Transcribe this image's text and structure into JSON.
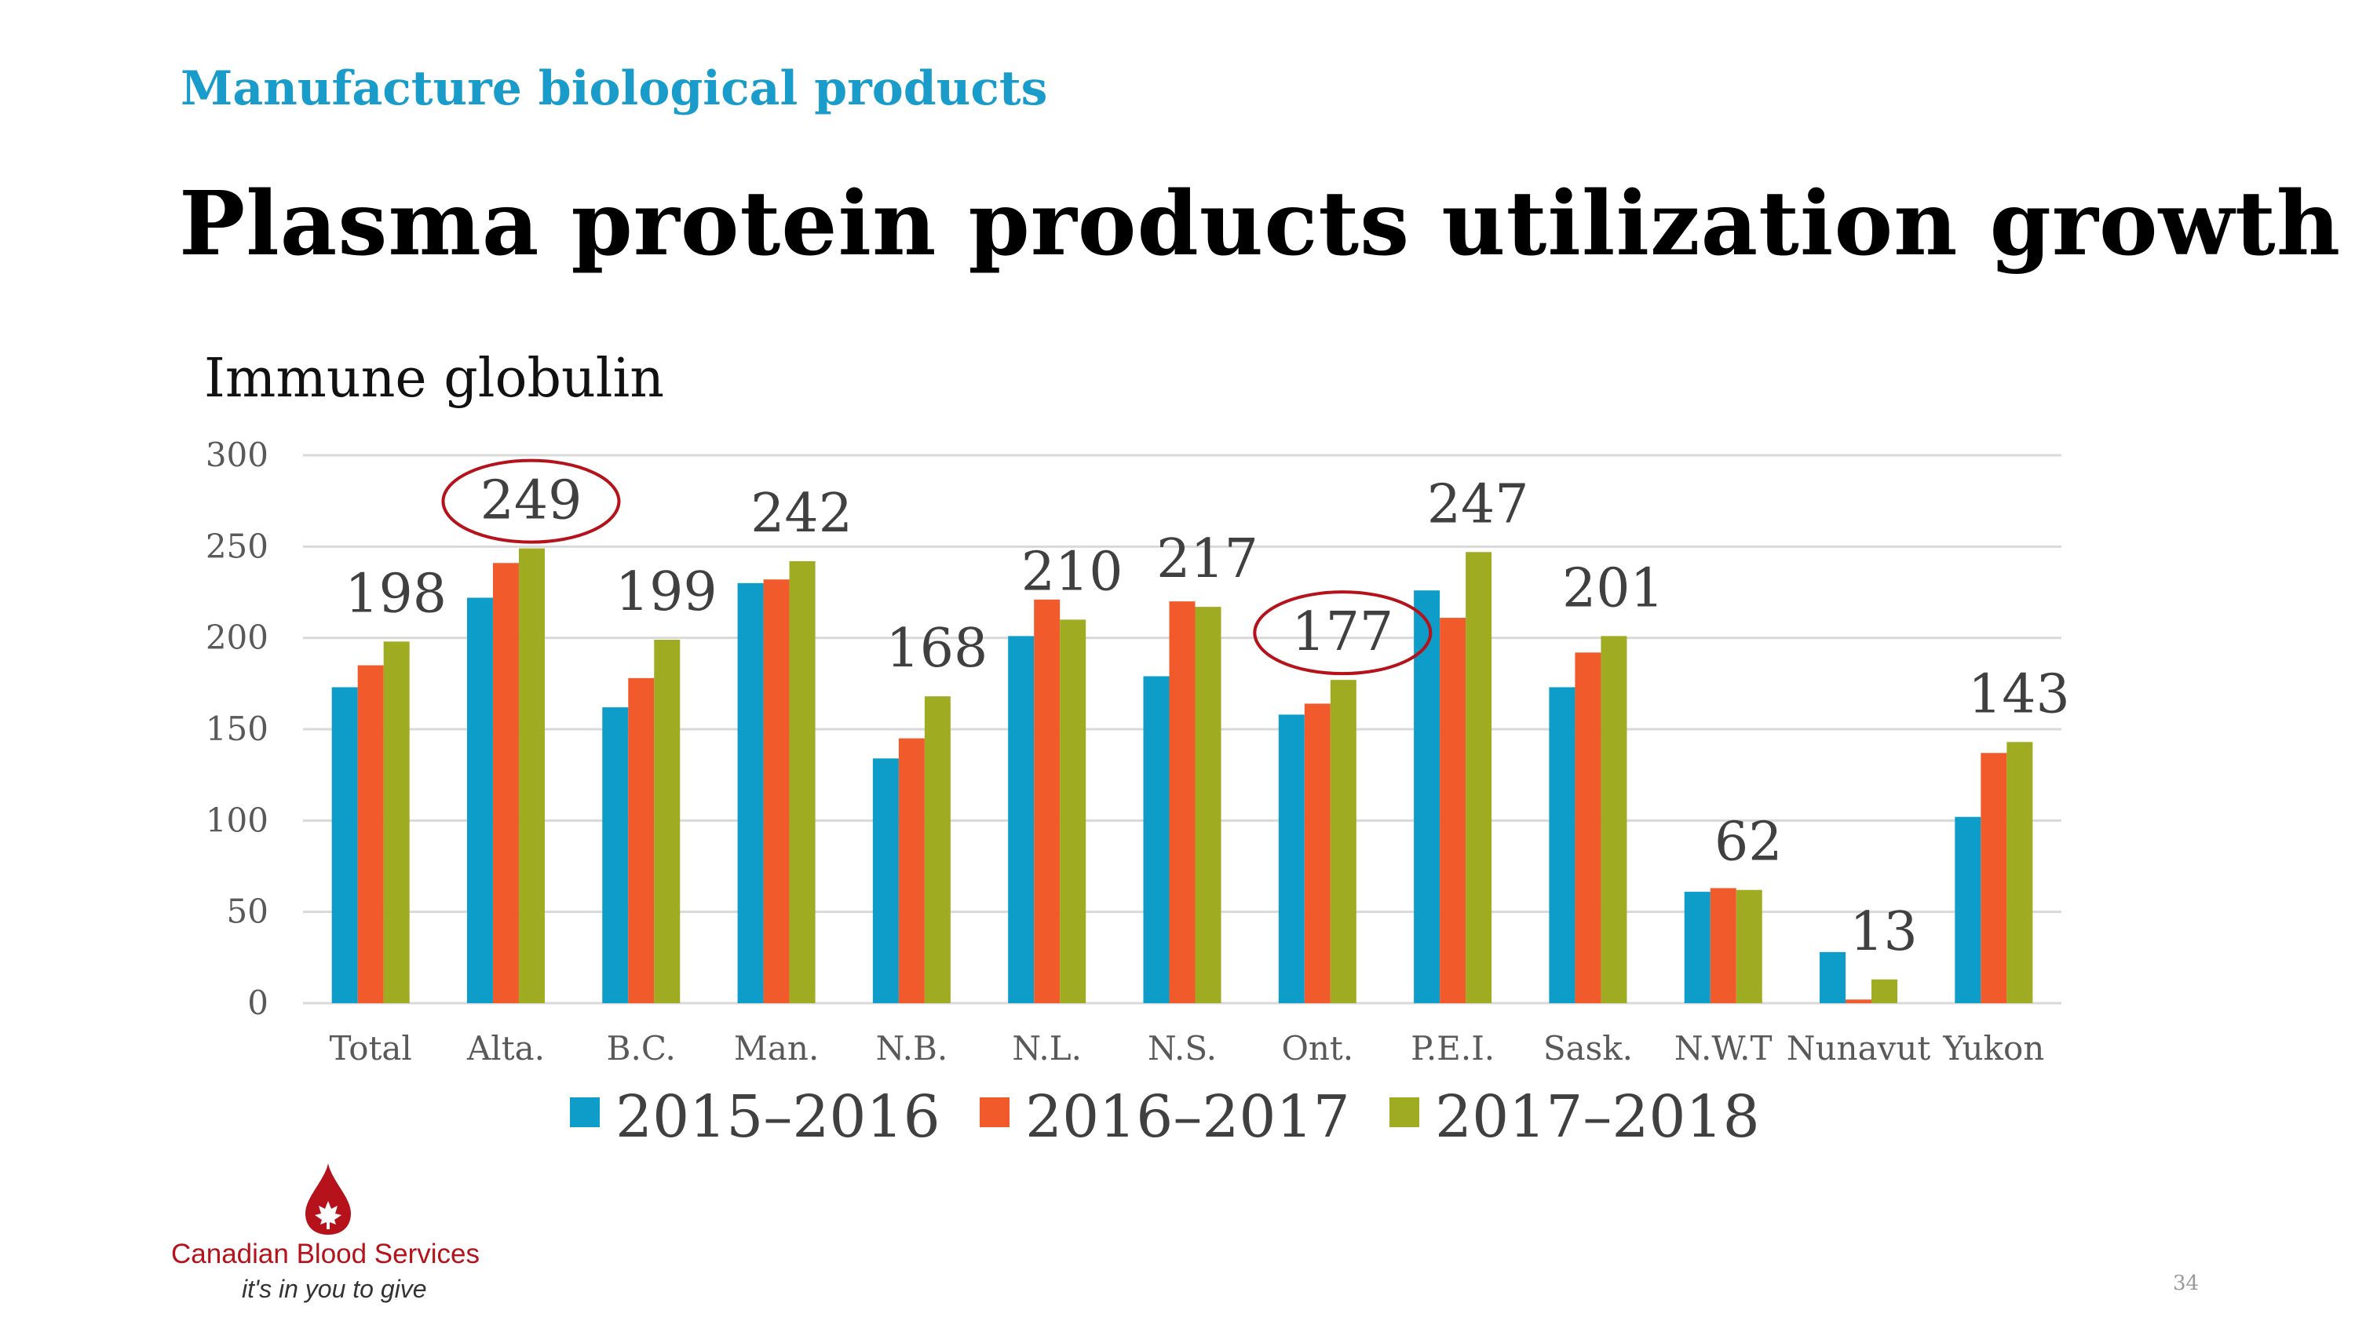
{
  "slide": {
    "kicker": "Manufacture biological products",
    "title": "Plasma protein products utilization growth",
    "page_number": "34"
  },
  "logo": {
    "name": "Canadian Blood Services",
    "tagline": "it's in you to give"
  },
  "colors": {
    "kicker": "#1a9ccb",
    "series_2015": "#0e9dc8",
    "series_2016": "#f15a2b",
    "series_2017": "#9fab20",
    "highlight_ellipse": "#b5121b",
    "gridline": "#d9d9d9"
  },
  "chart_data": {
    "type": "bar",
    "title": "Immune globulin",
    "categories": [
      "Total",
      "Alta.",
      "B.C.",
      "Man.",
      "N.B.",
      "N.L.",
      "N.S.",
      "Ont.",
      "P.E.I.",
      "Sask.",
      "N.W.T",
      "Nunavut",
      "Yukon"
    ],
    "series": [
      {
        "name": "2015–2016",
        "values": [
          173,
          222,
          162,
          230,
          134,
          201,
          179,
          158,
          226,
          173,
          61,
          28,
          102
        ]
      },
      {
        "name": "2016–2017",
        "values": [
          185,
          241,
          178,
          232,
          145,
          221,
          220,
          164,
          211,
          192,
          63,
          2,
          137
        ]
      },
      {
        "name": "2017–2018",
        "values": [
          198,
          249,
          199,
          242,
          168,
          210,
          217,
          177,
          247,
          201,
          62,
          13,
          143
        ]
      }
    ],
    "data_labels": [
      "198",
      "249",
      "199",
      "242",
      "168",
      "210",
      "217",
      "177",
      "247",
      "201",
      "62",
      "13",
      "143"
    ],
    "highlighted_categories": [
      "Alta.",
      "Ont."
    ],
    "ylim": [
      0,
      300
    ],
    "yticks": [
      "0",
      "50",
      "100",
      "150",
      "200",
      "250",
      "300"
    ],
    "grid": true,
    "legend_position": "bottom"
  }
}
